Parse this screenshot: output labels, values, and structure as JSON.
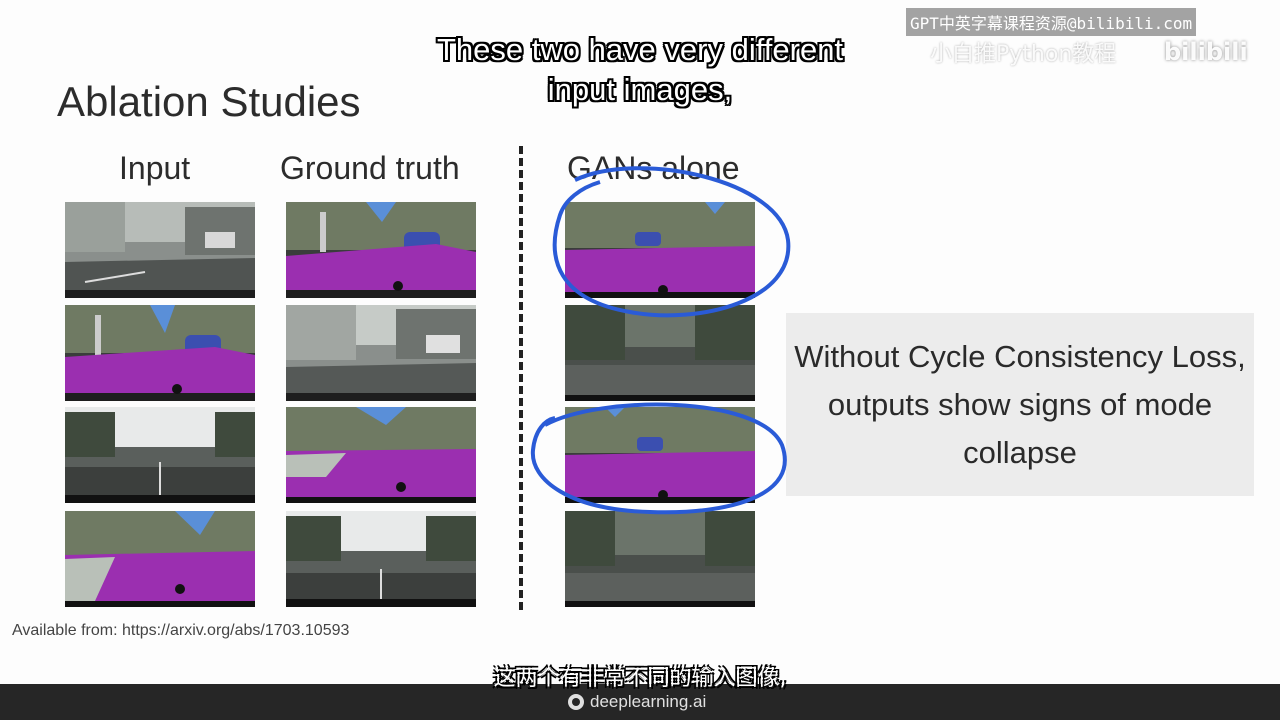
{
  "slide": {
    "title": "Ablation Studies",
    "columns": {
      "input": "Input",
      "ground_truth": "Ground truth",
      "gans_alone": "GANs alone"
    },
    "callout": "Without Cycle Consistency Loss, outputs show signs of mode collapse",
    "source": "Available from: https://arxiv.org/abs/1703.10593"
  },
  "subtitles": {
    "english": "These two have very different input images,",
    "chinese": "这两个有非常不同的输入图像,"
  },
  "watermark": {
    "line1": "GPT中英字幕课程资源@bilibili.com",
    "line2": "小白推Python教程",
    "logo": "bilibili"
  },
  "footer": {
    "brand": "deeplearning.ai"
  },
  "colors": {
    "segmentation_road": "#9b2fb0",
    "segmentation_sky": "#5a8fd8",
    "segmentation_building": "#7a8a6a",
    "annotation_circle": "#2a5bd7"
  },
  "icons": [
    "deeplearning-logo-icon"
  ]
}
